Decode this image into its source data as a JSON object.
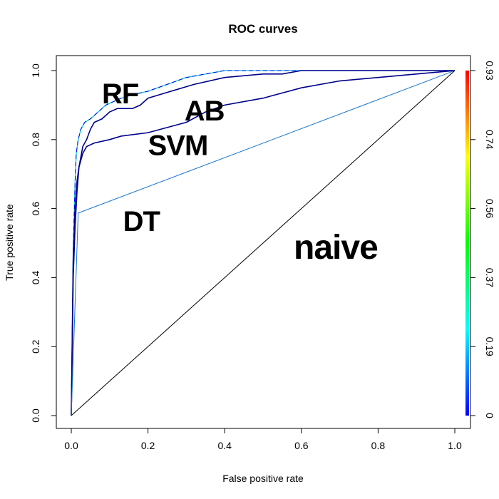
{
  "chart_data": {
    "type": "line",
    "title": "ROC curves",
    "xlabel": "False positive rate",
    "ylabel": "True positive rate",
    "xlim": [
      0,
      1
    ],
    "ylim": [
      0,
      1
    ],
    "x_ticks": [
      "0.0",
      "0.2",
      "0.4",
      "0.6",
      "0.8",
      "1.0"
    ],
    "y_ticks": [
      "0.0",
      "0.2",
      "0.4",
      "0.6",
      "0.8",
      "1.0"
    ],
    "grid": false,
    "legend": "none",
    "colorbar": {
      "ticks": [
        "0",
        "0.19",
        "0.37",
        "0.56",
        "0.74",
        "0.93"
      ],
      "colors": [
        "#0000ff",
        "#00ffff",
        "#00ff00",
        "#ffff00",
        "#ff0000"
      ]
    },
    "series": [
      {
        "name": "RF",
        "color": "#0000ff",
        "colormap": true,
        "x": [
          0.0,
          0.003,
          0.005,
          0.008,
          0.01,
          0.013,
          0.018,
          0.025,
          0.035,
          0.05,
          0.07,
          0.09,
          0.11,
          0.13,
          0.16,
          0.2,
          0.25,
          0.3,
          0.35,
          0.4,
          0.5,
          0.6,
          0.7,
          0.8,
          1.0
        ],
        "y": [
          0.0,
          0.3,
          0.48,
          0.6,
          0.68,
          0.76,
          0.8,
          0.83,
          0.85,
          0.86,
          0.88,
          0.9,
          0.91,
          0.92,
          0.93,
          0.94,
          0.96,
          0.98,
          0.99,
          1.0,
          1.0,
          1.0,
          1.0,
          1.0,
          1.0
        ]
      },
      {
        "name": "AB",
        "color": "#00008b",
        "x": [
          0.0,
          0.005,
          0.01,
          0.015,
          0.02,
          0.03,
          0.04,
          0.05,
          0.06,
          0.08,
          0.1,
          0.12,
          0.16,
          0.18,
          0.2,
          0.26,
          0.32,
          0.4,
          0.5,
          0.55,
          0.6,
          0.7,
          0.8,
          1.0
        ],
        "y": [
          0.0,
          0.4,
          0.55,
          0.65,
          0.72,
          0.78,
          0.8,
          0.83,
          0.85,
          0.86,
          0.88,
          0.89,
          0.89,
          0.9,
          0.92,
          0.94,
          0.96,
          0.98,
          0.99,
          0.99,
          1.0,
          1.0,
          1.0,
          1.0
        ]
      },
      {
        "name": "SVM",
        "color": "#00008b",
        "x": [
          0.0,
          0.005,
          0.01,
          0.015,
          0.02,
          0.03,
          0.04,
          0.06,
          0.1,
          0.13,
          0.2,
          0.3,
          0.35,
          0.4,
          0.5,
          0.6,
          0.7,
          0.8,
          0.9,
          1.0
        ],
        "y": [
          0.0,
          0.45,
          0.6,
          0.68,
          0.72,
          0.76,
          0.78,
          0.79,
          0.8,
          0.81,
          0.82,
          0.85,
          0.88,
          0.9,
          0.92,
          0.95,
          0.97,
          0.98,
          0.99,
          1.0
        ],
        "label": {
          "text": "SVM",
          "x": 0.25,
          "y": 0.775
        }
      },
      {
        "name": "DT",
        "color": "#1874cd",
        "x": [
          0.0,
          0.018,
          1.0
        ],
        "y": [
          0.0,
          0.587,
          1.0
        ]
      },
      {
        "name": "naive",
        "color": "#000000",
        "x": [
          0.0,
          1.0
        ],
        "y": [
          0.0,
          1.0
        ]
      }
    ]
  }
}
